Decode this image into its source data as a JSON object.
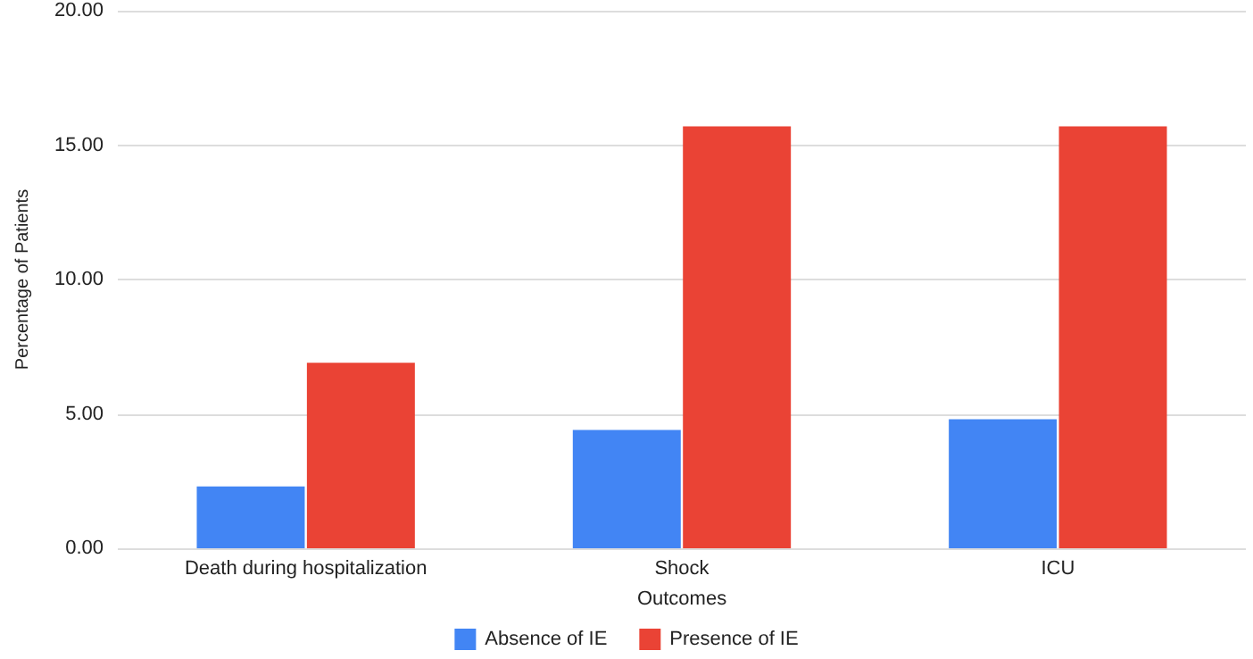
{
  "chart_data": {
    "type": "bar",
    "xlabel": "Outcomes",
    "ylabel": "Percentage of Patients",
    "categories": [
      "Death during hospitalization",
      "Shock",
      "ICU"
    ],
    "series": [
      {
        "name": "Absence of IE",
        "color": "#4285f4",
        "values": [
          2.3,
          4.4,
          4.8
        ]
      },
      {
        "name": "Presence of IE",
        "color": "#ea4335",
        "values": [
          6.9,
          15.7,
          15.7
        ]
      }
    ],
    "ylim": [
      0,
      20
    ],
    "yticks": [
      {
        "value": 0,
        "label": "0.00"
      },
      {
        "value": 5,
        "label": "5.00"
      },
      {
        "value": 10,
        "label": "10.00"
      },
      {
        "value": 15,
        "label": "15.00"
      },
      {
        "value": 20,
        "label": "20.00"
      }
    ],
    "grid": "y",
    "legend": "bottom"
  }
}
